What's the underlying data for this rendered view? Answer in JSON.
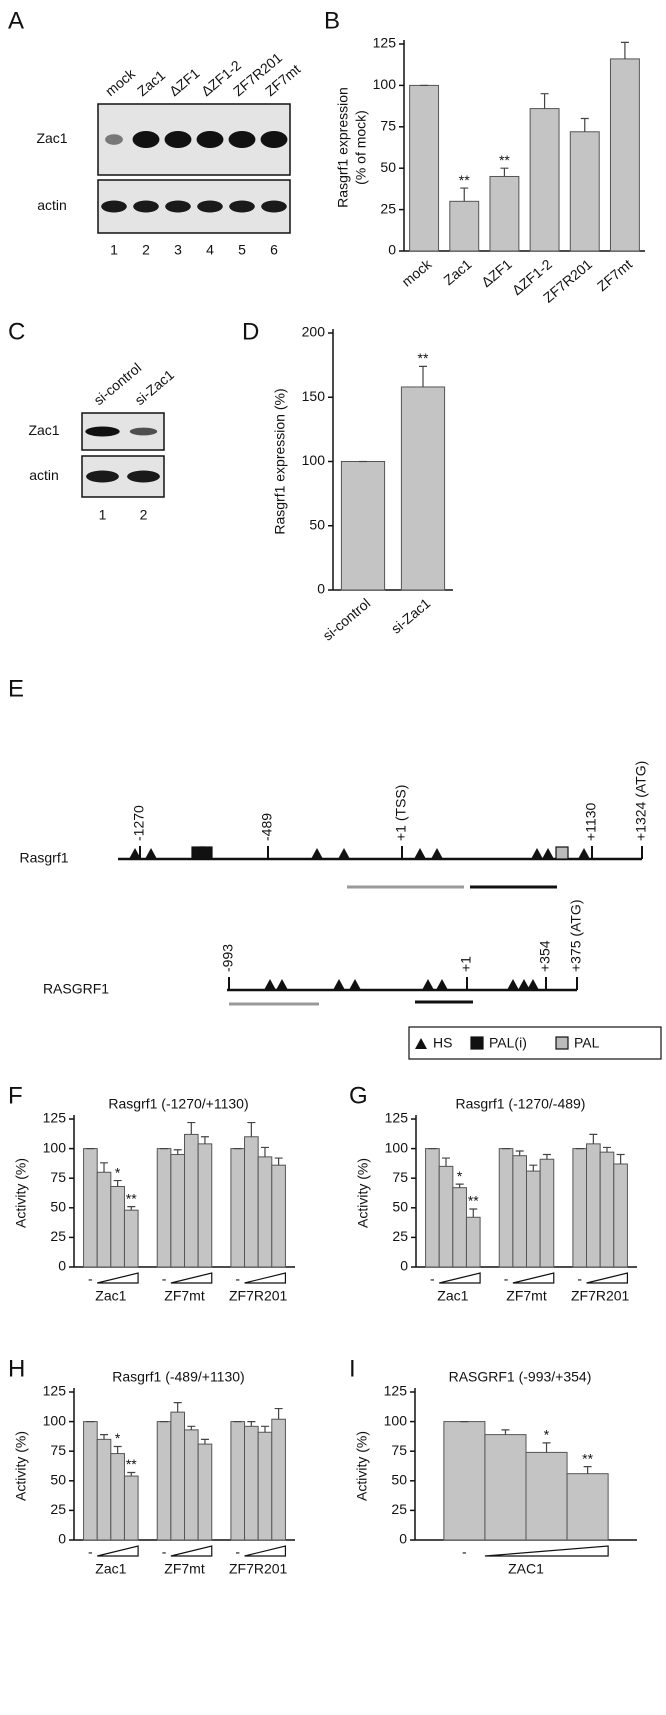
{
  "blots": [
    {
      "label": "A",
      "lanes": [
        "mock",
        "Zac1",
        "ΔZF1",
        "ΔZF1-2",
        "ZF7R201",
        "ZF7mt"
      ],
      "rows": [
        "Zac1",
        "actin"
      ],
      "numbers": [
        "1",
        "2",
        "3",
        "4",
        "5",
        "6"
      ]
    },
    {
      "label": "C",
      "lanes": [
        "si-control",
        "si-Zac1"
      ],
      "rows": [
        "Zac1",
        "actin"
      ],
      "numbers": [
        "1",
        "2"
      ]
    }
  ],
  "diagram": {
    "label": "E",
    "maps": [
      {
        "name": "Rasgrf1",
        "positions": [
          "-1270",
          "-489",
          "+1 (TSS)",
          "+1130",
          "+1324 (ATG)"
        ]
      },
      {
        "name": "RASGRF1",
        "positions": [
          "-993",
          "+1",
          "+354",
          "+375 (ATG)"
        ]
      }
    ],
    "legend": [
      "HS",
      "PAL(i)",
      "PAL"
    ]
  },
  "chart_data": [
    {
      "label": "B",
      "type": "bar",
      "ylabel": [
        "Rasgrf1 expression",
        "(% of mock)"
      ],
      "categories": [
        "mock",
        "Zac1",
        "ΔZF1",
        "ΔZF1-2",
        "ZF7R201",
        "ZF7mt"
      ],
      "values": [
        100,
        30,
        45,
        86,
        72,
        116
      ],
      "errors": [
        0,
        8,
        5,
        9,
        8,
        10
      ],
      "stars": [
        null,
        "**",
        "**",
        null,
        null,
        null
      ],
      "color": "#c4c4c4",
      "ylim": [
        0,
        125
      ],
      "yticks": [
        0,
        25,
        50,
        75,
        100,
        125
      ]
    },
    {
      "label": "D",
      "type": "bar",
      "ylabel": [
        "Rasgrf1 expression (%)"
      ],
      "categories": [
        "si-control",
        "si-Zac1"
      ],
      "values": [
        100,
        158
      ],
      "errors": [
        0,
        16
      ],
      "stars": [
        null,
        "**"
      ],
      "color": "#c4c4c4",
      "ylim": [
        0,
        200
      ],
      "yticks": [
        0,
        50,
        100,
        150,
        200
      ]
    },
    {
      "label": "F",
      "type": "grouped_bar",
      "title": "Rasgrf1 (-1270/+1130)",
      "ylabel": [
        "Activity (%)"
      ],
      "minus_label": "-",
      "groups": [
        {
          "name": "Zac1",
          "values": [
            100,
            80,
            68,
            48
          ],
          "errors": [
            0,
            8,
            5,
            3
          ],
          "stars": [
            null,
            null,
            "*",
            "**"
          ]
        },
        {
          "name": "ZF7mt",
          "values": [
            100,
            95,
            112,
            104
          ],
          "errors": [
            0,
            4,
            10,
            6
          ],
          "stars": [
            null,
            null,
            null,
            null
          ]
        },
        {
          "name": "ZF7R201",
          "values": [
            100,
            110,
            93,
            86
          ],
          "errors": [
            0,
            12,
            8,
            6
          ],
          "stars": [
            null,
            null,
            null,
            null
          ]
        }
      ],
      "color": "#c4c4c4",
      "ylim": [
        0,
        125
      ],
      "yticks": [
        0,
        25,
        50,
        75,
        100,
        125
      ]
    },
    {
      "label": "G",
      "type": "grouped_bar",
      "title": "Rasgrf1 (-1270/-489)",
      "ylabel": [
        "Activity (%)"
      ],
      "minus_label": "-",
      "groups": [
        {
          "name": "Zac1",
          "values": [
            100,
            85,
            67,
            42
          ],
          "errors": [
            0,
            7,
            3,
            7
          ],
          "stars": [
            null,
            null,
            "*",
            "**"
          ]
        },
        {
          "name": "ZF7mt",
          "values": [
            100,
            94,
            81,
            91
          ],
          "errors": [
            0,
            4,
            5,
            4
          ],
          "stars": [
            null,
            null,
            null,
            null
          ]
        },
        {
          "name": "ZF7R201",
          "values": [
            100,
            104,
            97,
            87
          ],
          "errors": [
            0,
            8,
            4,
            8
          ],
          "stars": [
            null,
            null,
            null,
            null
          ]
        }
      ],
      "color": "#c4c4c4",
      "ylim": [
        0,
        125
      ],
      "yticks": [
        0,
        25,
        50,
        75,
        100,
        125
      ]
    },
    {
      "label": "H",
      "type": "grouped_bar",
      "title": "Rasgrf1 (-489/+1130)",
      "ylabel": [
        "Activity (%)"
      ],
      "minus_label": "-",
      "groups": [
        {
          "name": "Zac1",
          "values": [
            100,
            85,
            73,
            54
          ],
          "errors": [
            0,
            4,
            6,
            3
          ],
          "stars": [
            null,
            null,
            "*",
            "**"
          ]
        },
        {
          "name": "ZF7mt",
          "values": [
            100,
            108,
            93,
            81
          ],
          "errors": [
            0,
            8,
            3,
            4
          ],
          "stars": [
            null,
            null,
            null,
            null
          ]
        },
        {
          "name": "ZF7R201",
          "values": [
            100,
            96,
            91,
            102
          ],
          "errors": [
            0,
            4,
            5,
            9
          ],
          "stars": [
            null,
            null,
            null,
            null
          ]
        }
      ],
      "color": "#c4c4c4",
      "ylim": [
        0,
        125
      ],
      "yticks": [
        0,
        25,
        50,
        75,
        100,
        125
      ]
    },
    {
      "label": "I",
      "type": "grouped_bar",
      "title": "RASGRF1 (-993/+354)",
      "ylabel": [
        "Activity (%)"
      ],
      "minus_label": "-",
      "groups": [
        {
          "name": "ZAC1",
          "values": [
            100,
            89,
            74,
            56
          ],
          "errors": [
            0,
            4,
            8,
            6
          ],
          "stars": [
            null,
            null,
            "*",
            "**"
          ]
        }
      ],
      "color": "#c4c4c4",
      "ylim": [
        0,
        125
      ],
      "yticks": [
        0,
        25,
        50,
        75,
        100,
        125
      ]
    }
  ]
}
